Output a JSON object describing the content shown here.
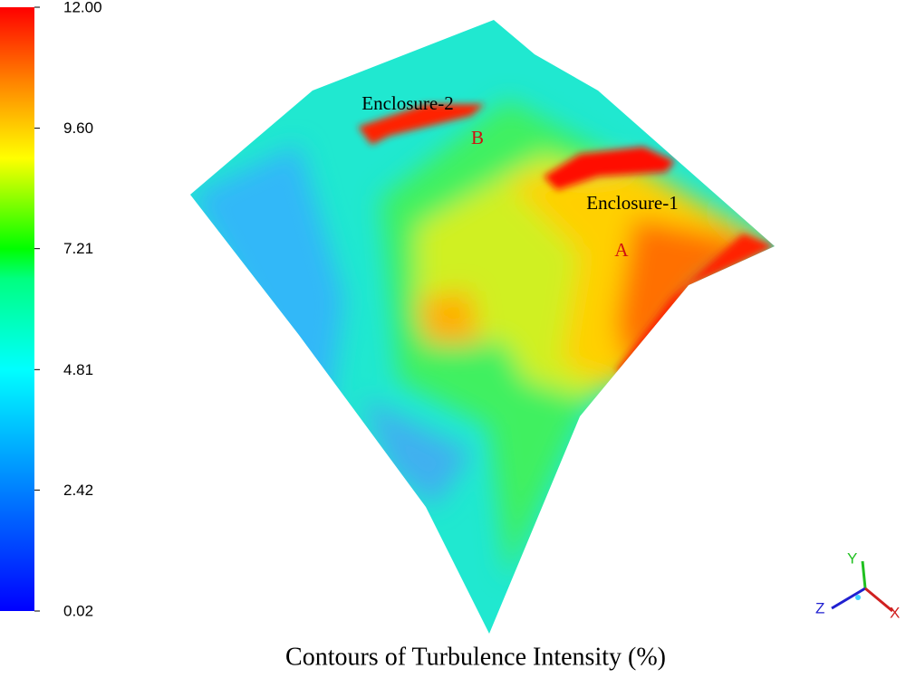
{
  "title": "Contours of Turbulence Intensity (%)",
  "colorbar": {
    "range": [
      0.02,
      12
    ],
    "ticks": [
      0.02,
      2.42,
      4.81,
      7.21,
      {
        "value": 9.6,
        "label": "9.60"
      },
      {
        "value": 12,
        "label": "12.00"
      }
    ]
  },
  "annotations": [
    {
      "text": "Enclosure-2"
    },
    {
      "text": "B"
    },
    {
      "text": "Enclosure-1"
    },
    {
      "text": "A"
    }
  ],
  "axes_triad": {
    "y": "Y",
    "z": "Z",
    "x": "X"
  }
}
